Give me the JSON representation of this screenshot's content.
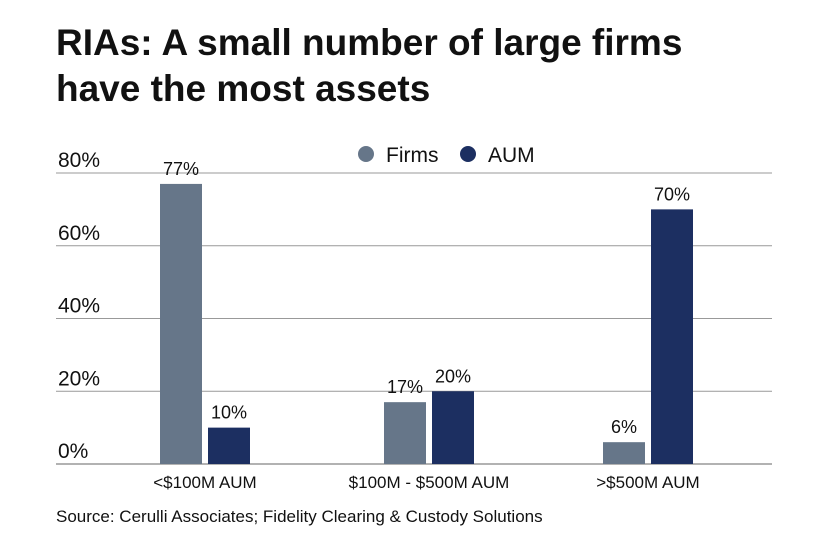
{
  "chart_data": {
    "type": "bar",
    "title": [
      "RIAs: A small number of large firms",
      "have the most assets"
    ],
    "categories": [
      "<$100M AUM",
      "$100M - $500M AUM",
      ">$500M AUM"
    ],
    "series": [
      {
        "name": "Firms",
        "values": [
          77,
          17,
          6
        ],
        "labels": [
          "77%",
          "17%",
          "6%"
        ],
        "color": "#667689"
      },
      {
        "name": "AUM",
        "values": [
          10,
          20,
          70
        ],
        "labels": [
          "10%",
          "20%",
          "70%"
        ],
        "color": "#1c2f61"
      }
    ],
    "ylim": [
      0,
      80
    ],
    "yticks": [
      0,
      20,
      40,
      60,
      80
    ],
    "ytick_labels": [
      "0%",
      "20%",
      "40%",
      "60%",
      "80%"
    ],
    "xlabel": "",
    "ylabel": "",
    "grid": true,
    "legend_position": "top-center"
  },
  "source": "Source: Cerulli Associates; Fidelity Clearing & Custody Solutions"
}
